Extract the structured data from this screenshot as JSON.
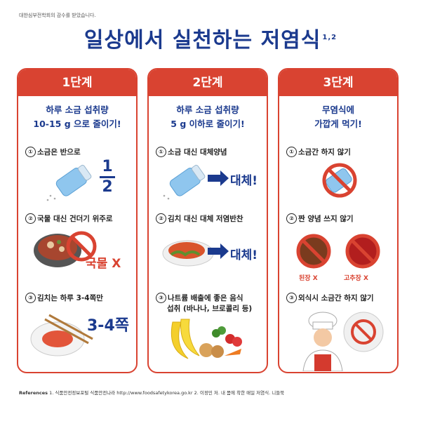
{
  "credit": "대한심부전학회의 감수를 받았습니다.",
  "title": "일상에서 실천하는 저염식",
  "title_sup": "1,2",
  "colors": {
    "accent_red": "#d94331",
    "brand_blue": "#1b3a8e"
  },
  "cards": [
    {
      "header": "1단계",
      "sub1": "하루 소금 섭취량",
      "sub2": "10-15 g 으로 줄이기!",
      "steps": [
        {
          "num": "①",
          "text": "소금은 반으로"
        },
        {
          "num": "②",
          "text": "국물 대신 건더기 위주로"
        },
        {
          "num": "③",
          "text": "김치는 하루 3-4쪽만"
        }
      ],
      "fraction_top": "1",
      "fraction_bottom": "2",
      "soup_label": "국물 X",
      "kimchi_label": "3-4쪽"
    },
    {
      "header": "2단계",
      "sub1": "하루 소금 섭취량",
      "sub2": "5 g 이하로 줄이기!",
      "steps": [
        {
          "num": "①",
          "text": "소금 대신 대체양념"
        },
        {
          "num": "②",
          "text": "김치 대신 대체 저염반찬"
        },
        {
          "num": "③",
          "text": "나트륨 배출에 좋은 음식"
        }
      ],
      "step3_line2": "섭취 (바나나, 브로콜리 등)",
      "replace_label": "대체!"
    },
    {
      "header": "3단계",
      "sub1": "무염식에",
      "sub2": "가깝게 먹기!",
      "steps": [
        {
          "num": "①",
          "text": "소금간 하지 않기"
        },
        {
          "num": "②",
          "text": "짠 양념 쓰지 않기"
        },
        {
          "num": "③",
          "text": "외식시 소금간 하지 않기"
        }
      ],
      "doenjang_label": "된장 X",
      "gochujang_label": "고추장 X"
    }
  ],
  "references_label": "References",
  "references_text": "1. 식품안전정보포털 식품안전나라 http://www.foodsafetykorea.go.kr 2. 이정민 저. 내 몸에 착한 매일 저염식. 니들북"
}
